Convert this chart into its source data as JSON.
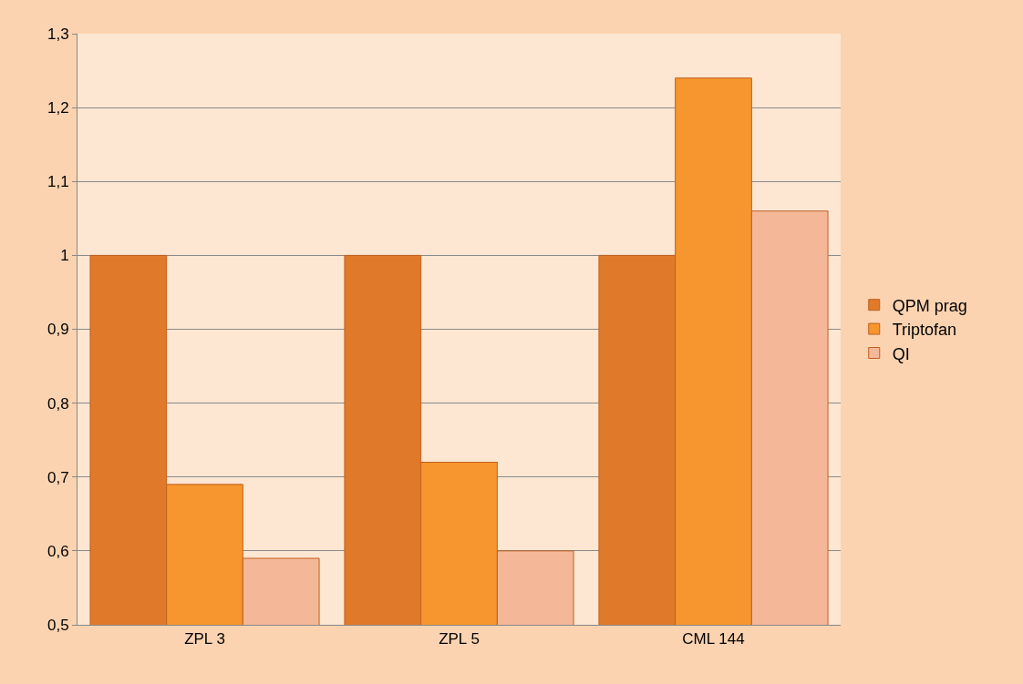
{
  "chart_data": {
    "type": "bar",
    "categories": [
      "ZPL 3",
      "ZPL 5",
      "CML 144"
    ],
    "series": [
      {
        "name": "QPM prag",
        "color": "#e07a2a",
        "values": [
          1,
          1,
          1
        ]
      },
      {
        "name": "Triptofan",
        "color": "#f7952f",
        "values": [
          0.69,
          0.72,
          1.24
        ]
      },
      {
        "name": "QI",
        "color": "#f4b898",
        "values": [
          0.59,
          0.6,
          1.06
        ]
      }
    ],
    "ylim": [
      0.5,
      1.3
    ],
    "yticks": [
      {
        "value": 0.5,
        "label": "0,5"
      },
      {
        "value": 0.6,
        "label": "0,6"
      },
      {
        "value": 0.7,
        "label": "0,7"
      },
      {
        "value": 0.8,
        "label": "0,8"
      },
      {
        "value": 0.9,
        "label": "0,9"
      },
      {
        "value": 1,
        "label": "1"
      },
      {
        "value": 1.1,
        "label": "1,1"
      },
      {
        "value": 1.2,
        "label": "1,2"
      },
      {
        "value": 1.3,
        "label": "1,3"
      }
    ],
    "grid": "y",
    "legend": "right"
  }
}
